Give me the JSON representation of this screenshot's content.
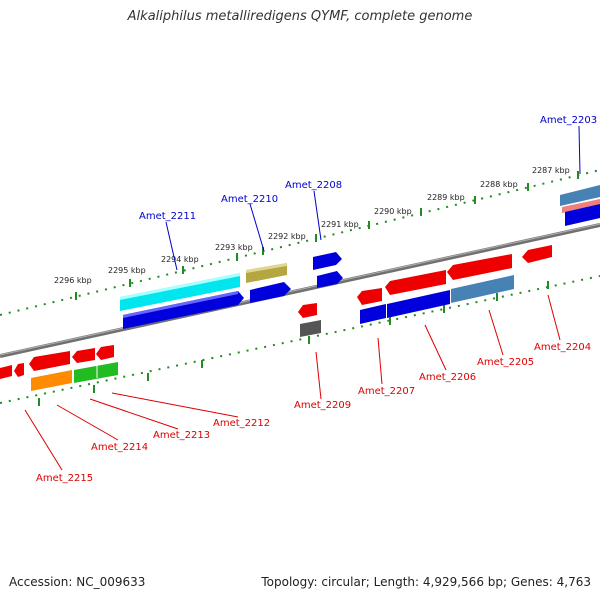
{
  "title": "Alkaliphilus metalliredigens QYMF, complete genome",
  "footer": {
    "accession": "Accession: NC_009633",
    "topology": "Topology: circular; Length: 4,929,566 bp; Genes: 4,763"
  },
  "colors": {
    "backbone": "#808080",
    "forward_label": "#0000cc",
    "reverse_label": "#dd0000",
    "scale_dots": "#228b22"
  },
  "scale_labels": [
    "2287 kbp",
    "2288 kbp",
    "2289 kbp",
    "2290 kbp",
    "2291 kbp",
    "2292 kbp",
    "2293 kbp",
    "2294 kbp",
    "2295 kbp",
    "2296 kbp"
  ],
  "forward_gene_labels": [
    "Amet_2203",
    "Amet_2208",
    "Amet_2210",
    "Amet_2211"
  ],
  "reverse_gene_labels": [
    "Amet_2204",
    "Amet_2205",
    "Amet_2206",
    "Amet_2207",
    "Amet_2209",
    "Amet_2212",
    "Amet_2213",
    "Amet_2214",
    "Amet_2215"
  ]
}
